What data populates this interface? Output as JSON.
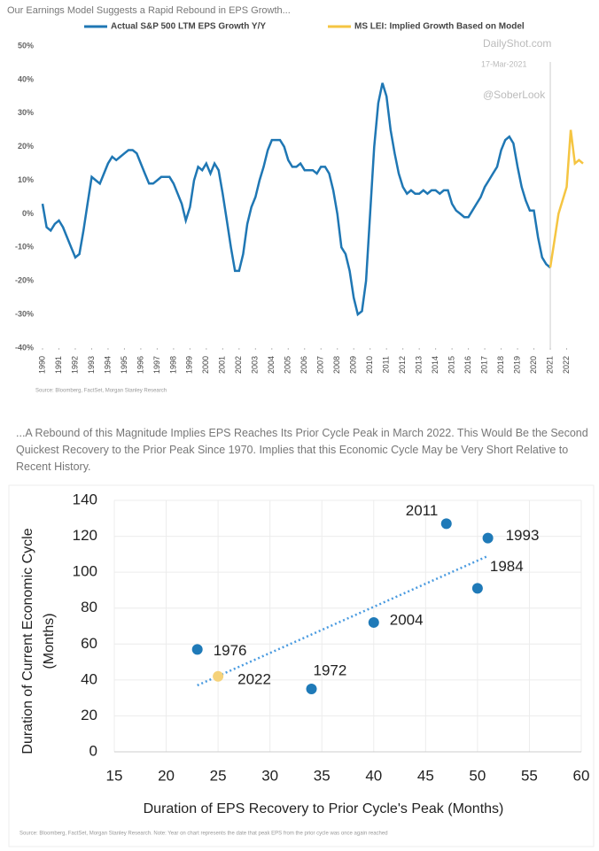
{
  "chart_data": [
    {
      "type": "line",
      "title": "Our Earnings Model Suggests a Rapid Rebound in EPS Growth...",
      "series": [
        {
          "name": "Actual S&P 500 LTM EPS Growth Y/Y",
          "color": "#1f77b4",
          "x": [
            1990,
            1990.25,
            1990.5,
            1990.75,
            1991,
            1991.25,
            1991.5,
            1991.75,
            1992,
            1992.25,
            1992.5,
            1992.75,
            1993,
            1993.25,
            1993.5,
            1993.75,
            1994,
            1994.25,
            1994.5,
            1994.75,
            1995,
            1995.25,
            1995.5,
            1995.75,
            1996,
            1996.25,
            1996.5,
            1996.75,
            1997,
            1997.25,
            1997.5,
            1997.75,
            1998,
            1998.25,
            1998.5,
            1998.75,
            1999,
            1999.25,
            1999.5,
            1999.75,
            2000,
            2000.25,
            2000.5,
            2000.75,
            2001,
            2001.25,
            2001.5,
            2001.75,
            2002,
            2002.25,
            2002.5,
            2002.75,
            2003,
            2003.25,
            2003.5,
            2003.75,
            2004,
            2004.25,
            2004.5,
            2004.75,
            2005,
            2005.25,
            2005.5,
            2005.75,
            2006,
            2006.25,
            2006.5,
            2006.75,
            2007,
            2007.25,
            2007.5,
            2007.75,
            2008,
            2008.25,
            2008.5,
            2008.75,
            2009,
            2009.25,
            2009.5,
            2009.75,
            2010,
            2010.25,
            2010.5,
            2010.75,
            2011,
            2011.25,
            2011.5,
            2011.75,
            2012,
            2012.25,
            2012.5,
            2012.75,
            2013,
            2013.25,
            2013.5,
            2013.75,
            2014,
            2014.25,
            2014.5,
            2014.75,
            2015,
            2015.25,
            2015.5,
            2015.75,
            2016,
            2016.25,
            2016.5,
            2016.75,
            2017,
            2017.25,
            2017.5,
            2017.75,
            2018,
            2018.25,
            2018.5,
            2018.75,
            2019,
            2019.25,
            2019.5,
            2019.75,
            2020,
            2020.25,
            2020.5,
            2020.75,
            2021
          ],
          "values": [
            3,
            -4,
            -5,
            -3,
            -2,
            -4,
            -7,
            -10,
            -13,
            -12,
            -5,
            3,
            11,
            10,
            9,
            12,
            15,
            17,
            16,
            17,
            18,
            19,
            19,
            18,
            15,
            12,
            9,
            9,
            10,
            11,
            11,
            11,
            9,
            6,
            3,
            -2,
            2,
            10,
            14,
            13,
            15,
            12,
            15,
            13,
            6,
            -2,
            -10,
            -17,
            -17,
            -12,
            -3,
            2,
            5,
            10,
            14,
            19,
            22,
            22,
            22,
            20,
            16,
            14,
            14,
            15,
            13,
            13,
            13,
            12,
            14,
            14,
            12,
            7,
            0,
            -10,
            -12,
            -17,
            -25,
            -30,
            -29,
            -20,
            0,
            20,
            33,
            39,
            35,
            25,
            18,
            12,
            8,
            6,
            7,
            6,
            6,
            7,
            6,
            7,
            7,
            6,
            7,
            7,
            3,
            1,
            0,
            -1,
            -1,
            1,
            3,
            5,
            8,
            10,
            12,
            14,
            19,
            22,
            23,
            21,
            14,
            8,
            4,
            1,
            1,
            -7,
            -13,
            -15,
            -16
          ]
        },
        {
          "name": "MS LEI: Implied Growth Based on Model",
          "color": "#f5c542",
          "x": [
            2021,
            2021.25,
            2021.5,
            2021.75,
            2022,
            2022.25,
            2022.5,
            2022.75,
            2023
          ],
          "values": [
            -16,
            -8,
            0,
            4,
            8,
            25,
            15,
            16,
            15
          ]
        }
      ],
      "xlim": [
        1990,
        2023
      ],
      "xticks": [
        1990,
        1991,
        1992,
        1993,
        1994,
        1995,
        1996,
        1997,
        1998,
        1999,
        2000,
        2001,
        2002,
        2003,
        2004,
        2005,
        2006,
        2007,
        2008,
        2009,
        2010,
        2011,
        2012,
        2013,
        2014,
        2015,
        2016,
        2017,
        2018,
        2019,
        2020,
        2021,
        2022
      ],
      "ylim": [
        -40,
        50
      ],
      "yticks": [
        {
          "value": -40,
          "label": "-40%"
        },
        {
          "value": -30,
          "label": "-30%"
        },
        {
          "value": -20,
          "label": "-20%"
        },
        {
          "value": -10,
          "label": "-10%"
        },
        {
          "value": 0,
          "label": "0%"
        },
        {
          "value": 10,
          "label": "10%"
        },
        {
          "value": 20,
          "label": "20%"
        },
        {
          "value": 30,
          "label": "30%"
        },
        {
          "value": 40,
          "label": "40%"
        },
        {
          "value": 50,
          "label": "50%"
        }
      ],
      "vline": 2021,
      "annotations": [
        "DailyShot.com",
        "17-Mar-2021",
        "@SoberLook"
      ],
      "source": "Source: Bloomberg, FactSet, Morgan Stanley Research"
    },
    {
      "type": "scatter",
      "title": "...A Rebound of this Magnitude Implies EPS Reaches Its Prior Cycle Peak in March 2022. This Would Be the Second Quickest Recovery to the Prior Peak Since 1970. Implies that this Economic Cycle May be Very Short Relative to Recent History.",
      "labels": [
        "1976",
        "2022",
        "1972",
        "2004",
        "2011",
        "1993",
        "1984"
      ],
      "x": [
        23,
        25,
        34,
        40,
        47,
        51,
        50
      ],
      "values": [
        57,
        42,
        35,
        72,
        127,
        119,
        91
      ],
      "colors": [
        "#1f7ab8",
        "#f5d27a",
        "#1f7ab8",
        "#1f7ab8",
        "#1f7ab8",
        "#1f7ab8",
        "#1f7ab8"
      ],
      "trendline": {
        "x": [
          23,
          51
        ],
        "values": [
          37,
          109
        ],
        "color": "#4a9be0"
      },
      "xlim": [
        15,
        60
      ],
      "xticks": [
        15,
        20,
        25,
        30,
        35,
        40,
        45,
        50,
        55,
        60
      ],
      "ylim": [
        0,
        140
      ],
      "yticks": [
        0,
        20,
        40,
        60,
        80,
        100,
        120,
        140
      ],
      "grid": true,
      "xlabel": "Duration of EPS Recovery to Prior Cycle's Peak (Months)",
      "ylabel": [
        "Duration of Current Economic Cycle",
        "(Months)"
      ],
      "source": "Source: Bloomberg, FactSet, Morgan Stanley Research. Note: Year on chart represents the date that peak EPS from the prior cycle was once again reached"
    }
  ]
}
